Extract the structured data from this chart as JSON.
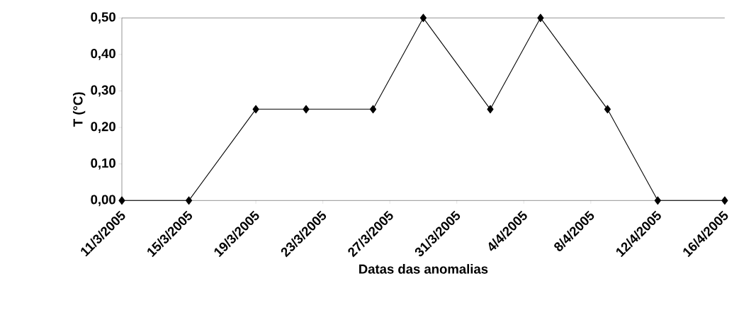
{
  "chart_data": {
    "type": "line",
    "xlabel": "Datas das anomalias",
    "ylabel": "T (°C)",
    "x": [
      "2005-03-11",
      "2005-03-15",
      "2005-03-19",
      "2005-03-22",
      "2005-03-26",
      "2005-03-29",
      "2005-04-02",
      "2005-04-05",
      "2005-04-09",
      "2005-04-12",
      "2005-04-16"
    ],
    "series": [
      {
        "color": "#000000",
        "values": [
          0,
          0,
          0.25,
          0.25,
          0.25,
          0.5,
          0.25,
          0.5,
          0.25,
          0,
          0
        ]
      }
    ],
    "xlim": [
      "2005-03-11",
      "2005-04-16"
    ],
    "xticks": [
      {
        "value": "2005-03-11",
        "label": "11/3/2005"
      },
      {
        "value": "2005-03-15",
        "label": "15/3/2005"
      },
      {
        "value": "2005-03-19",
        "label": "19/3/2005"
      },
      {
        "value": "2005-03-23",
        "label": "23/3/2005"
      },
      {
        "value": "2005-03-27",
        "label": "27/3/2005"
      },
      {
        "value": "2005-03-31",
        "label": "31/3/2005"
      },
      {
        "value": "2005-04-04",
        "label": "4/4/2005"
      },
      {
        "value": "2005-04-08",
        "label": "8/4/2005"
      },
      {
        "value": "2005-04-12",
        "label": "12/4/2005"
      },
      {
        "value": "2005-04-16",
        "label": "16/4/2005"
      }
    ],
    "ylim": [
      0,
      0.5
    ],
    "yticks": [
      {
        "value": 0,
        "label": "0,00"
      },
      {
        "value": 0.1,
        "label": "0,10"
      },
      {
        "value": 0.2,
        "label": "0,20"
      },
      {
        "value": 0.3,
        "label": "0,30"
      },
      {
        "value": 0.4,
        "label": "0,40"
      },
      {
        "value": 0.5,
        "label": "0,50"
      }
    ],
    "marker": "diamond",
    "line_style": "solid"
  }
}
